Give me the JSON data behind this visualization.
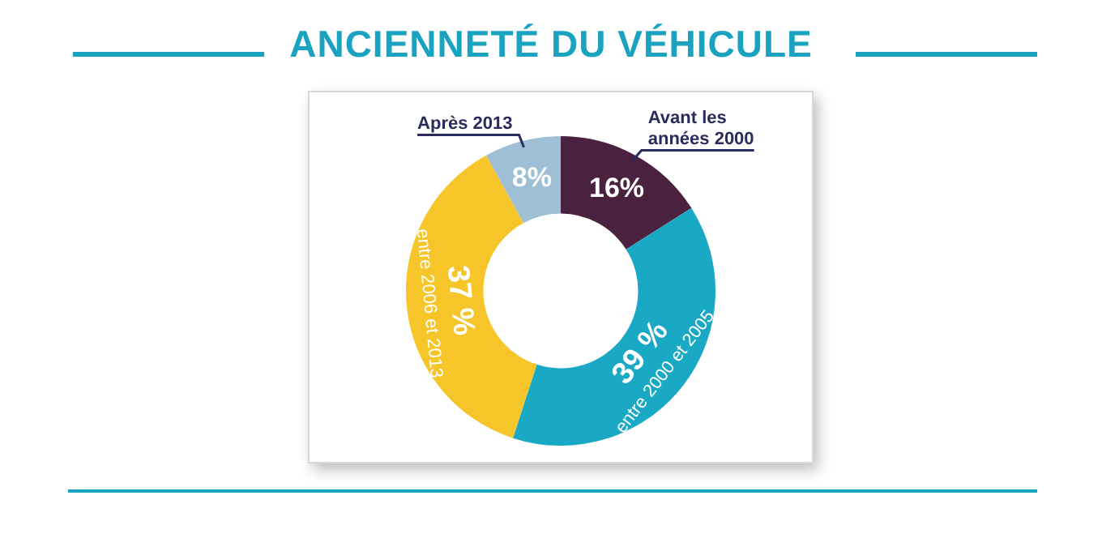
{
  "chart_data": {
    "type": "donut",
    "title": "ANCIENNETÉ DU VÉHICULE",
    "categories": [
      "Avant les années 2000",
      "entre 2000 et 2005",
      "entre 2006 et 2013",
      "Après 2013"
    ],
    "values": [
      16,
      39,
      37,
      8
    ],
    "colors": [
      "#4b2140",
      "#1aa9c4",
      "#f5c52a",
      "#9fc0d4"
    ],
    "value_labels": [
      "16%",
      "39 %",
      "37 %",
      "8%"
    ]
  }
}
